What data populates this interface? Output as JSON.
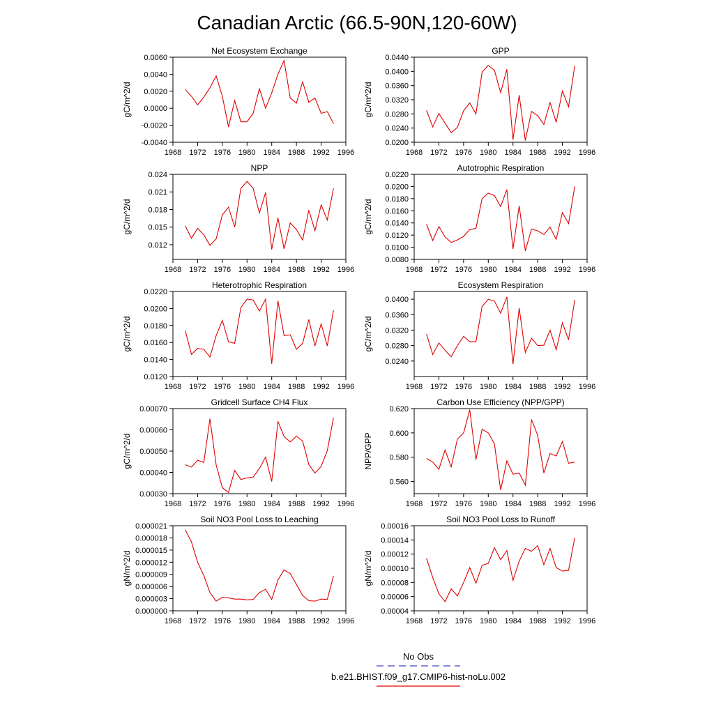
{
  "title": "Canadian Arctic (66.5-90N,120-60W)",
  "legend": {
    "entries": [
      {
        "label": "No Obs",
        "color": "#4040c0",
        "style": "dashed"
      },
      {
        "label": "b.e21.BHIST.f09_g17.CMIP6-hist-noLu.002",
        "color": "#e00000",
        "style": "solid"
      }
    ]
  },
  "x_ticks": [
    "1968",
    "1972",
    "1976",
    "1980",
    "1984",
    "1988",
    "1992",
    "1996"
  ],
  "chart_data": [
    {
      "type": "line",
      "title": "Net Ecosystem Exchange",
      "ylabel": "gC/m^2/d",
      "xlabel": "",
      "xlim": [
        1968,
        1996
      ],
      "ylim": [
        -0.004,
        0.006
      ],
      "yticks": [
        "-0.0040",
        "-0.0020",
        "0.0000",
        "0.0020",
        "0.0040",
        "0.0060"
      ],
      "x": [
        1970,
        1971,
        1972,
        1973,
        1974,
        1975,
        1976,
        1977,
        1978,
        1979,
        1980,
        1981,
        1982,
        1983,
        1984,
        1985,
        1986,
        1987,
        1988,
        1989,
        1990,
        1991,
        1992,
        1993,
        1994
      ],
      "series": [
        {
          "color": "#e00000",
          "values": [
            0.0022,
            0.0014,
            0.0004,
            0.0013,
            0.0024,
            0.0038,
            0.0014,
            -0.0022,
            0.0009,
            -0.0016,
            -0.0016,
            -0.0006,
            0.0023,
            0.0,
            0.0018,
            0.004,
            0.0056,
            0.0012,
            0.0006,
            0.0031,
            0.0007,
            0.0012,
            -0.0006,
            -0.0004,
            -0.0018
          ]
        }
      ]
    },
    {
      "type": "line",
      "title": "GPP",
      "ylabel": "gC/m^2/d",
      "xlabel": "",
      "xlim": [
        1968,
        1996
      ],
      "ylim": [
        0.02,
        0.044
      ],
      "yticks": [
        "0.0200",
        "0.0240",
        "0.0280",
        "0.0320",
        "0.0360",
        "0.0400",
        "0.0440"
      ],
      "x": [
        1970,
        1971,
        1972,
        1973,
        1974,
        1975,
        1976,
        1977,
        1978,
        1979,
        1980,
        1981,
        1982,
        1983,
        1984,
        1985,
        1986,
        1987,
        1988,
        1989,
        1990,
        1991,
        1992,
        1993,
        1994
      ],
      "series": [
        {
          "color": "#e00000",
          "values": [
            0.029,
            0.0243,
            0.0281,
            0.0254,
            0.0227,
            0.0242,
            0.0289,
            0.0311,
            0.028,
            0.0398,
            0.0417,
            0.0403,
            0.034,
            0.0406,
            0.0207,
            0.0333,
            0.0205,
            0.0287,
            0.0275,
            0.025,
            0.0312,
            0.0256,
            0.0345,
            0.03,
            0.0416
          ]
        }
      ]
    },
    {
      "type": "line",
      "title": "NPP",
      "ylabel": "gC/m^2/d",
      "xlabel": "",
      "xlim": [
        1968,
        1996
      ],
      "ylim": [
        0.0095,
        0.024
      ],
      "yticks": [
        "0.012",
        "0.015",
        "0.018",
        "0.021",
        "0.024"
      ],
      "x": [
        1970,
        1971,
        1972,
        1973,
        1974,
        1975,
        1976,
        1977,
        1978,
        1979,
        1980,
        1981,
        1982,
        1983,
        1984,
        1985,
        1986,
        1987,
        1988,
        1989,
        1990,
        1991,
        1992,
        1993,
        1994
      ],
      "series": [
        {
          "color": "#e00000",
          "values": [
            0.0152,
            0.0131,
            0.0148,
            0.0137,
            0.0119,
            0.013,
            0.0171,
            0.0184,
            0.015,
            0.0216,
            0.0228,
            0.0216,
            0.0174,
            0.0209,
            0.0112,
            0.0166,
            0.0113,
            0.0157,
            0.0146,
            0.0128,
            0.0179,
            0.0144,
            0.0188,
            0.0162,
            0.0216
          ]
        }
      ]
    },
    {
      "type": "line",
      "title": "Autotrophic Respiration",
      "ylabel": "gC/m^2/d",
      "xlabel": "",
      "xlim": [
        1968,
        1996
      ],
      "ylim": [
        0.008,
        0.022
      ],
      "yticks": [
        "0.0080",
        "0.0100",
        "0.0120",
        "0.0140",
        "0.0160",
        "0.0180",
        "0.0200",
        "0.0220"
      ],
      "x": [
        1970,
        1971,
        1972,
        1973,
        1974,
        1975,
        1976,
        1977,
        1978,
        1979,
        1980,
        1981,
        1982,
        1983,
        1984,
        1985,
        1986,
        1987,
        1988,
        1989,
        1990,
        1991,
        1992,
        1993,
        1994
      ],
      "series": [
        {
          "color": "#e00000",
          "values": [
            0.0138,
            0.0111,
            0.0134,
            0.0117,
            0.0108,
            0.0112,
            0.0118,
            0.0129,
            0.0131,
            0.018,
            0.0189,
            0.0185,
            0.0167,
            0.0195,
            0.0097,
            0.0168,
            0.0094,
            0.013,
            0.0127,
            0.0121,
            0.0133,
            0.0113,
            0.0157,
            0.0139,
            0.02
          ]
        }
      ]
    },
    {
      "type": "line",
      "title": "Heterotrophic Respiration",
      "ylabel": "gC/m^2/d",
      "xlabel": "",
      "xlim": [
        1968,
        1996
      ],
      "ylim": [
        0.012,
        0.022
      ],
      "yticks": [
        "0.0120",
        "0.0140",
        "0.0160",
        "0.0180",
        "0.0200",
        "0.0220"
      ],
      "x": [
        1970,
        1971,
        1972,
        1973,
        1974,
        1975,
        1976,
        1977,
        1978,
        1979,
        1980,
        1981,
        1982,
        1983,
        1984,
        1985,
        1986,
        1987,
        1988,
        1989,
        1990,
        1991,
        1992,
        1993,
        1994
      ],
      "series": [
        {
          "color": "#e00000",
          "values": [
            0.0174,
            0.0146,
            0.0153,
            0.0152,
            0.0143,
            0.0168,
            0.0186,
            0.0161,
            0.0159,
            0.0201,
            0.0211,
            0.021,
            0.0197,
            0.0211,
            0.0135,
            0.0209,
            0.0168,
            0.0169,
            0.0152,
            0.0159,
            0.0187,
            0.0156,
            0.0182,
            0.0156,
            0.0198
          ]
        }
      ]
    },
    {
      "type": "line",
      "title": "Ecosystem Respiration",
      "ylabel": "gC/m^2/d",
      "xlabel": "",
      "xlim": [
        1968,
        1996
      ],
      "ylim": [
        0.02,
        0.042
      ],
      "yticks": [
        "0.0240",
        "0.0280",
        "0.0320",
        "0.0360",
        "0.0400"
      ],
      "x": [
        1970,
        1971,
        1972,
        1973,
        1974,
        1975,
        1976,
        1977,
        1978,
        1979,
        1980,
        1981,
        1982,
        1983,
        1984,
        1985,
        1986,
        1987,
        1988,
        1989,
        1990,
        1991,
        1992,
        1993,
        1994
      ],
      "series": [
        {
          "color": "#e00000",
          "values": [
            0.031,
            0.0257,
            0.0287,
            0.0268,
            0.0251,
            0.028,
            0.0304,
            0.029,
            0.029,
            0.0381,
            0.04,
            0.0395,
            0.0364,
            0.0406,
            0.0232,
            0.0377,
            0.0262,
            0.0299,
            0.028,
            0.0281,
            0.032,
            0.0269,
            0.0339,
            0.0295,
            0.0398
          ]
        }
      ]
    },
    {
      "type": "line",
      "title": "Gridcell Surface CH4 Flux",
      "ylabel": "gC/m^2/d",
      "xlabel": "",
      "xlim": [
        1968,
        1996
      ],
      "ylim": [
        0.0003,
        0.0007
      ],
      "yticks": [
        "0.00030",
        "0.00040",
        "0.00050",
        "0.00060",
        "0.00070"
      ],
      "x": [
        1970,
        1971,
        1972,
        1973,
        1974,
        1975,
        1976,
        1977,
        1978,
        1979,
        1980,
        1981,
        1982,
        1983,
        1984,
        1985,
        1986,
        1987,
        1988,
        1989,
        1990,
        1991,
        1992,
        1993,
        1994
      ],
      "series": [
        {
          "color": "#e00000",
          "values": [
            0.000436,
            0.000425,
            0.000457,
            0.000447,
            0.000652,
            0.000435,
            0.000328,
            0.000306,
            0.000409,
            0.000367,
            0.000374,
            0.000378,
            0.000418,
            0.000472,
            0.000357,
            0.00064,
            0.000569,
            0.000543,
            0.00057,
            0.000548,
            0.000437,
            0.000397,
            0.000428,
            0.000503,
            0.000657
          ]
        }
      ]
    },
    {
      "type": "line",
      "title": "Carbon Use Efficiency (NPP/GPP)",
      "ylabel": "NPP/GPP",
      "xlabel": "",
      "xlim": [
        1968,
        1996
      ],
      "ylim": [
        0.55,
        0.62
      ],
      "yticks": [
        "0.560",
        "0.580",
        "0.600",
        "0.620"
      ],
      "x": [
        1970,
        1971,
        1972,
        1973,
        1974,
        1975,
        1976,
        1977,
        1978,
        1979,
        1980,
        1981,
        1982,
        1983,
        1984,
        1985,
        1986,
        1987,
        1988,
        1989,
        1990,
        1991,
        1992,
        1993,
        1994
      ],
      "series": [
        {
          "color": "#e00000",
          "values": [
            0.579,
            0.576,
            0.57,
            0.586,
            0.572,
            0.595,
            0.6,
            0.619,
            0.578,
            0.603,
            0.6,
            0.591,
            0.553,
            0.577,
            0.566,
            0.567,
            0.557,
            0.611,
            0.598,
            0.567,
            0.583,
            0.581,
            0.593,
            0.575,
            0.576
          ]
        }
      ]
    },
    {
      "type": "line",
      "title": "Soil NO3 Pool Loss to Leaching",
      "ylabel": "gN/m^2/d",
      "xlabel": "",
      "xlim": [
        1968,
        1996
      ],
      "ylim": [
        0,
        2.1e-05
      ],
      "yticks": [
        "0.000000",
        "0.000003",
        "0.000006",
        "0.000009",
        "0.000012",
        "0.000015",
        "0.000018",
        "0.000021"
      ],
      "x": [
        1970,
        1971,
        1972,
        1973,
        1974,
        1975,
        1976,
        1977,
        1978,
        1979,
        1980,
        1981,
        1982,
        1983,
        1984,
        1985,
        1986,
        1987,
        1988,
        1989,
        1990,
        1991,
        1992,
        1993,
        1994
      ],
      "series": [
        {
          "color": "#e00000",
          "values": [
            2e-05,
            1.7e-05,
            1.2e-05,
            8.7e-06,
            4.5e-06,
            2.4e-06,
            3.3e-06,
            3.2e-06,
            2.9e-06,
            2.9e-06,
            2.7e-06,
            2.8e-06,
            4.5e-06,
            5.3e-06,
            2.8e-06,
            7.6e-06,
            1.01e-05,
            9.2e-06,
            6.5e-06,
            3.8e-06,
            2.5e-06,
            2.4e-06,
            2.9e-06,
            2.8e-06,
            8.6e-06
          ]
        }
      ]
    },
    {
      "type": "line",
      "title": "Soil NO3 Pool Loss to Runoff",
      "ylabel": "gN/m^2/d",
      "xlabel": "",
      "xlim": [
        1968,
        1996
      ],
      "ylim": [
        4e-05,
        0.00016
      ],
      "yticks": [
        "0.00004",
        "0.00006",
        "0.00008",
        "0.00010",
        "0.00012",
        "0.00014",
        "0.00016"
      ],
      "x": [
        1970,
        1971,
        1972,
        1973,
        1974,
        1975,
        1976,
        1977,
        1978,
        1979,
        1980,
        1981,
        1982,
        1983,
        1984,
        1985,
        1986,
        1987,
        1988,
        1989,
        1990,
        1991,
        1992,
        1993,
        1994
      ],
      "series": [
        {
          "color": "#e00000",
          "values": [
            0.000114,
            8.7e-05,
            6.4e-05,
            5.3e-05,
            7.1e-05,
            6.1e-05,
            8e-05,
            0.000101,
            7.9e-05,
            0.000104,
            0.000107,
            0.000129,
            0.000112,
            0.000125,
            8.3e-05,
            0.00011,
            0.000128,
            0.000124,
            0.000132,
            0.000105,
            0.000128,
            0.000101,
            9.6e-05,
            9.7e-05,
            0.000143
          ]
        }
      ]
    }
  ]
}
